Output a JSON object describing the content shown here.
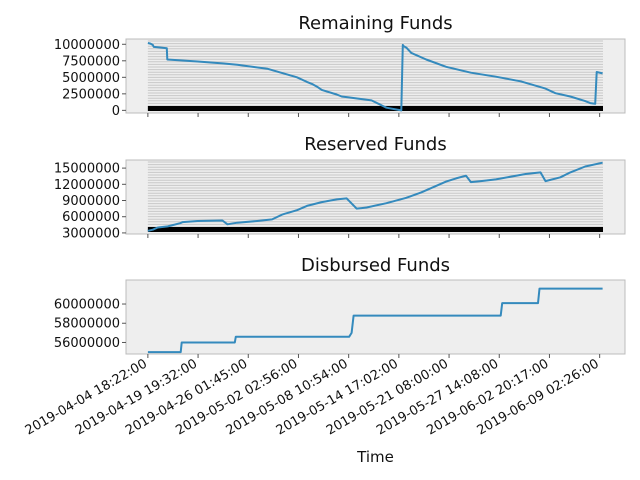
{
  "chart_data": [
    {
      "type": "line",
      "title": "Remaining Funds",
      "xlabel": "",
      "ylabel": "",
      "ylim": [
        -400000,
        10800000
      ],
      "yticks": [
        "0",
        "2500000",
        "5000000",
        "7500000",
        "10000000"
      ],
      "grid": true,
      "dense_hgrid": true,
      "color": "#348abd",
      "series": [
        {
          "x": [
            0,
            0.5,
            1,
            1.2,
            2.7,
            3.8,
            3.9,
            10,
            15,
            18,
            20,
            24,
            30,
            32,
            33,
            34,
            35,
            38,
            39,
            40,
            45,
            48,
            51,
            51.3,
            51.5,
            52,
            53,
            56,
            60,
            65,
            70,
            75,
            80,
            82,
            85,
            88,
            89,
            90,
            90.3,
            91.5
          ],
          "y": [
            10200000,
            10100000,
            9900000,
            9600000,
            9500000,
            9400000,
            7700000,
            7400000,
            7100000,
            6900000,
            6700000,
            6300000,
            5000000,
            4300000,
            4000000,
            3600000,
            3100000,
            2400000,
            2100000,
            2000000,
            1500000,
            400000,
            0,
            9900000,
            9700000,
            9500000,
            8700000,
            7700000,
            6600000,
            5700000,
            5100000,
            4400000,
            3300000,
            2600000,
            2100000,
            1400000,
            1100000,
            1000000,
            5800000,
            5600000
          ]
        }
      ]
    },
    {
      "type": "line",
      "title": "Reserved Funds",
      "xlabel": "",
      "ylabel": "",
      "ylim": [
        2800000,
        16500000
      ],
      "yticks": [
        "3000000",
        "6000000",
        "9000000",
        "12000000",
        "15000000"
      ],
      "grid": true,
      "dense_hgrid": true,
      "color": "#348abd",
      "series": [
        {
          "x": [
            0,
            1,
            2,
            4,
            6.5,
            7,
            10,
            15,
            16,
            18,
            22,
            25,
            27,
            30,
            32,
            35,
            38,
            40,
            42,
            43,
            44,
            48,
            52,
            55,
            57,
            60,
            62,
            64,
            65,
            67,
            70,
            76,
            79,
            80,
            83,
            85,
            88,
            91.5
          ],
          "y": [
            3400000,
            3600000,
            4000000,
            4200000,
            4800000,
            5000000,
            5200000,
            5300000,
            4600000,
            4900000,
            5200000,
            5500000,
            6400000,
            7200000,
            8000000,
            8700000,
            9200000,
            9400000,
            7500000,
            7600000,
            7700000,
            8500000,
            9500000,
            10500000,
            11300000,
            12500000,
            13100000,
            13600000,
            12400000,
            12600000,
            12900000,
            13900000,
            14200000,
            12600000,
            13300000,
            14200000,
            15300000,
            16000000
          ]
        }
      ]
    },
    {
      "type": "line",
      "title": "Disbursed Funds",
      "xlabel": "Time",
      "ylabel": "",
      "ylim": [
        54800000,
        62500000
      ],
      "yticks": [
        "56000000",
        "58000000",
        "60000000"
      ],
      "grid": false,
      "dense_hgrid": false,
      "color": "#348abd",
      "series": [
        {
          "x": [
            0,
            6.6,
            6.8,
            17.5,
            17.7,
            40.5,
            41,
            41.4,
            71,
            71.3,
            78.5,
            78.8,
            91.5
          ],
          "y": [
            55000000,
            55000000,
            56000000,
            56000000,
            56600000,
            56600000,
            57000000,
            58800000,
            58800000,
            60100000,
            60100000,
            61600000,
            61600000
          ]
        }
      ]
    }
  ],
  "x_axis": {
    "range": [
      -4.4,
      96
    ],
    "ticks": [
      {
        "x": 0,
        "label": "2019-04-04 18:22:00"
      },
      {
        "x": 10.1,
        "label": "2019-04-19 19:32:00"
      },
      {
        "x": 20.2,
        "label": "2019-04-26 01:45:00"
      },
      {
        "x": 30.3,
        "label": "2019-05-02 02:56:00"
      },
      {
        "x": 40.4,
        "label": "2019-05-08 10:54:00"
      },
      {
        "x": 50.5,
        "label": "2019-05-14 17:02:00"
      },
      {
        "x": 60.6,
        "label": "2019-05-21 08:00:00"
      },
      {
        "x": 70.7,
        "label": "2019-05-27 14:08:00"
      },
      {
        "x": 80.8,
        "label": "2019-06-02 20:17:00"
      },
      {
        "x": 90.9,
        "label": "2019-06-09 02:26:00"
      }
    ]
  }
}
